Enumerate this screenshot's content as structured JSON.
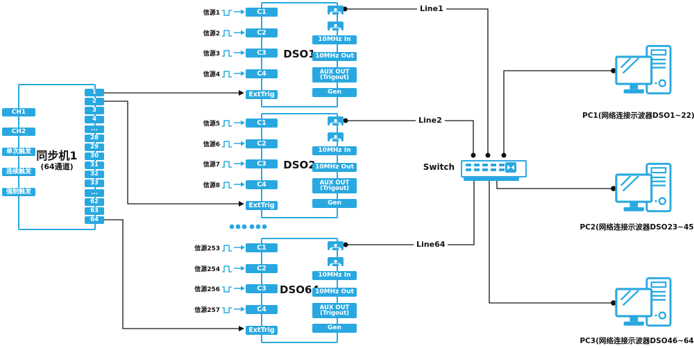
{
  "colors": {
    "blue": "#29a8e0",
    "line": "#111111"
  },
  "sync": {
    "title": "同步机1",
    "subtitle": "(64通道)",
    "left_labels": [
      "CH1",
      "CH2",
      "单次触发",
      "连续触发",
      "强制触发"
    ],
    "ports": [
      "1",
      "2",
      "3",
      "4",
      "...",
      "28",
      "29",
      "30",
      "31",
      "32",
      "33",
      "...",
      "62",
      "63",
      "64"
    ]
  },
  "dsos": [
    {
      "label": "DSO1",
      "ext": "ExtTrig",
      "channels": [
        "C1",
        "C2",
        "C3",
        "C4"
      ],
      "signals": [
        {
          "name": "信源1",
          "wave": "low"
        },
        {
          "name": "信源2",
          "wave": "high"
        },
        {
          "name": "信源3",
          "wave": "high"
        },
        {
          "name": "信源4",
          "wave": "high"
        }
      ],
      "right": {
        "in": "10MHz In",
        "out": "10MHz Out",
        "aux1": "AUX OUT",
        "aux2": "(Trigout)",
        "gen": "Gen"
      }
    },
    {
      "label": "DSO2",
      "ext": "ExtTrig",
      "channels": [
        "C1",
        "C2",
        "C3",
        "C4"
      ],
      "signals": [
        {
          "name": "信源5",
          "wave": "high"
        },
        {
          "name": "信源6",
          "wave": "high"
        },
        {
          "name": "信源7",
          "wave": "high"
        },
        {
          "name": "信源8",
          "wave": "high"
        }
      ],
      "right": {
        "in": "10MHz In",
        "out": "10MHz Out",
        "aux1": "AUX OUT",
        "aux2": "(Trigout)",
        "gen": "Gen"
      }
    },
    {
      "label": "DSO64",
      "ext": "ExtTrig",
      "channels": [
        "C1",
        "C2",
        "C3",
        "C4"
      ],
      "signals": [
        {
          "name": "信源253",
          "wave": "high"
        },
        {
          "name": "信源254",
          "wave": "high"
        },
        {
          "name": "信源256",
          "wave": "low"
        },
        {
          "name": "信源257",
          "wave": "low"
        }
      ],
      "right": {
        "in": "10MHz In",
        "out": "10MHz Out",
        "aux1": "AUX OUT",
        "aux2": "(Trigout)",
        "gen": "Gen"
      }
    }
  ],
  "lines": {
    "line1": "Line1",
    "line2": "Line2",
    "line64": "Line64"
  },
  "switch": {
    "label": "Switch"
  },
  "pcs": [
    {
      "label": "PC1(网络连接示波器DSO1~22)"
    },
    {
      "label": "PC2(网络连接示波器DSO23~45)"
    },
    {
      "label": "PC3(网络连接示波器DSO46~64)"
    }
  ]
}
